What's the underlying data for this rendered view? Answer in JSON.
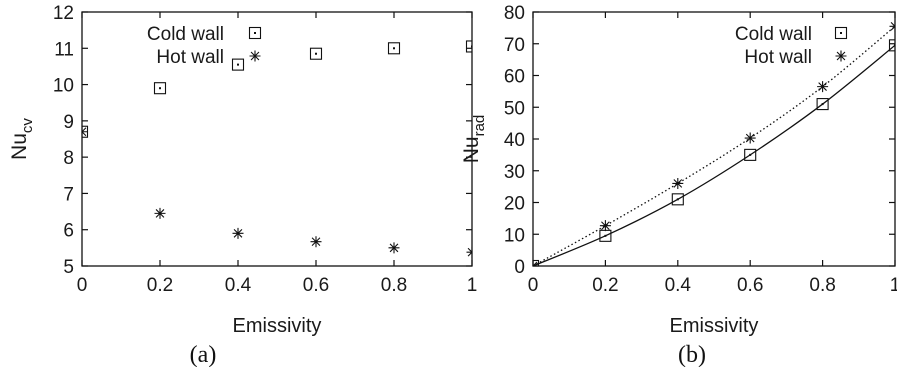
{
  "chart_data": [
    {
      "type": "scatter",
      "xlabel": "Emissivity",
      "ylabel": "Nu",
      "ylabel_sub": "cv",
      "caption": "(a)",
      "xlim": [
        0,
        1
      ],
      "ylim": [
        5,
        12
      ],
      "xticks": [
        "0",
        "0.2",
        "0.4",
        "0.6",
        "0.8",
        "1"
      ],
      "yticks": [
        "5",
        "6",
        "7",
        "8",
        "9",
        "10",
        "11",
        "12"
      ],
      "legend_position": "top-left",
      "series": [
        {
          "name": "Cold wall",
          "marker": "square",
          "x": [
            0,
            0.2,
            0.4,
            0.6,
            0.8,
            1.0
          ],
          "y": [
            8.7,
            9.9,
            10.55,
            10.85,
            11.0,
            11.05
          ]
        },
        {
          "name": "Hot wall",
          "marker": "star",
          "x": [
            0,
            0.2,
            0.4,
            0.6,
            0.8,
            1.0
          ],
          "y": [
            8.7,
            6.45,
            5.9,
            5.67,
            5.5,
            5.38
          ]
        }
      ]
    },
    {
      "type": "line",
      "xlabel": "Emissivity",
      "ylabel": "Nu",
      "ylabel_sub": "rad",
      "caption": "(b)",
      "xlim": [
        0,
        1
      ],
      "ylim": [
        0,
        80
      ],
      "xticks": [
        "0",
        "0.2",
        "0.4",
        "0.6",
        "0.8",
        "1"
      ],
      "yticks": [
        "0",
        "10",
        "20",
        "30",
        "40",
        "50",
        "60",
        "70",
        "80"
      ],
      "legend_position": "top-right",
      "series": [
        {
          "name": "Cold wall",
          "marker": "square",
          "line": "solid",
          "x": [
            0,
            0.2,
            0.4,
            0.6,
            0.8,
            1.0
          ],
          "y": [
            0,
            9.5,
            21,
            35,
            51,
            69.5
          ]
        },
        {
          "name": "Hot wall",
          "marker": "star",
          "line": "dotted",
          "x": [
            0,
            0.2,
            0.4,
            0.6,
            0.8,
            1.0
          ],
          "y": [
            0,
            12.7,
            26,
            40.3,
            56.5,
            75.5
          ]
        }
      ]
    }
  ]
}
